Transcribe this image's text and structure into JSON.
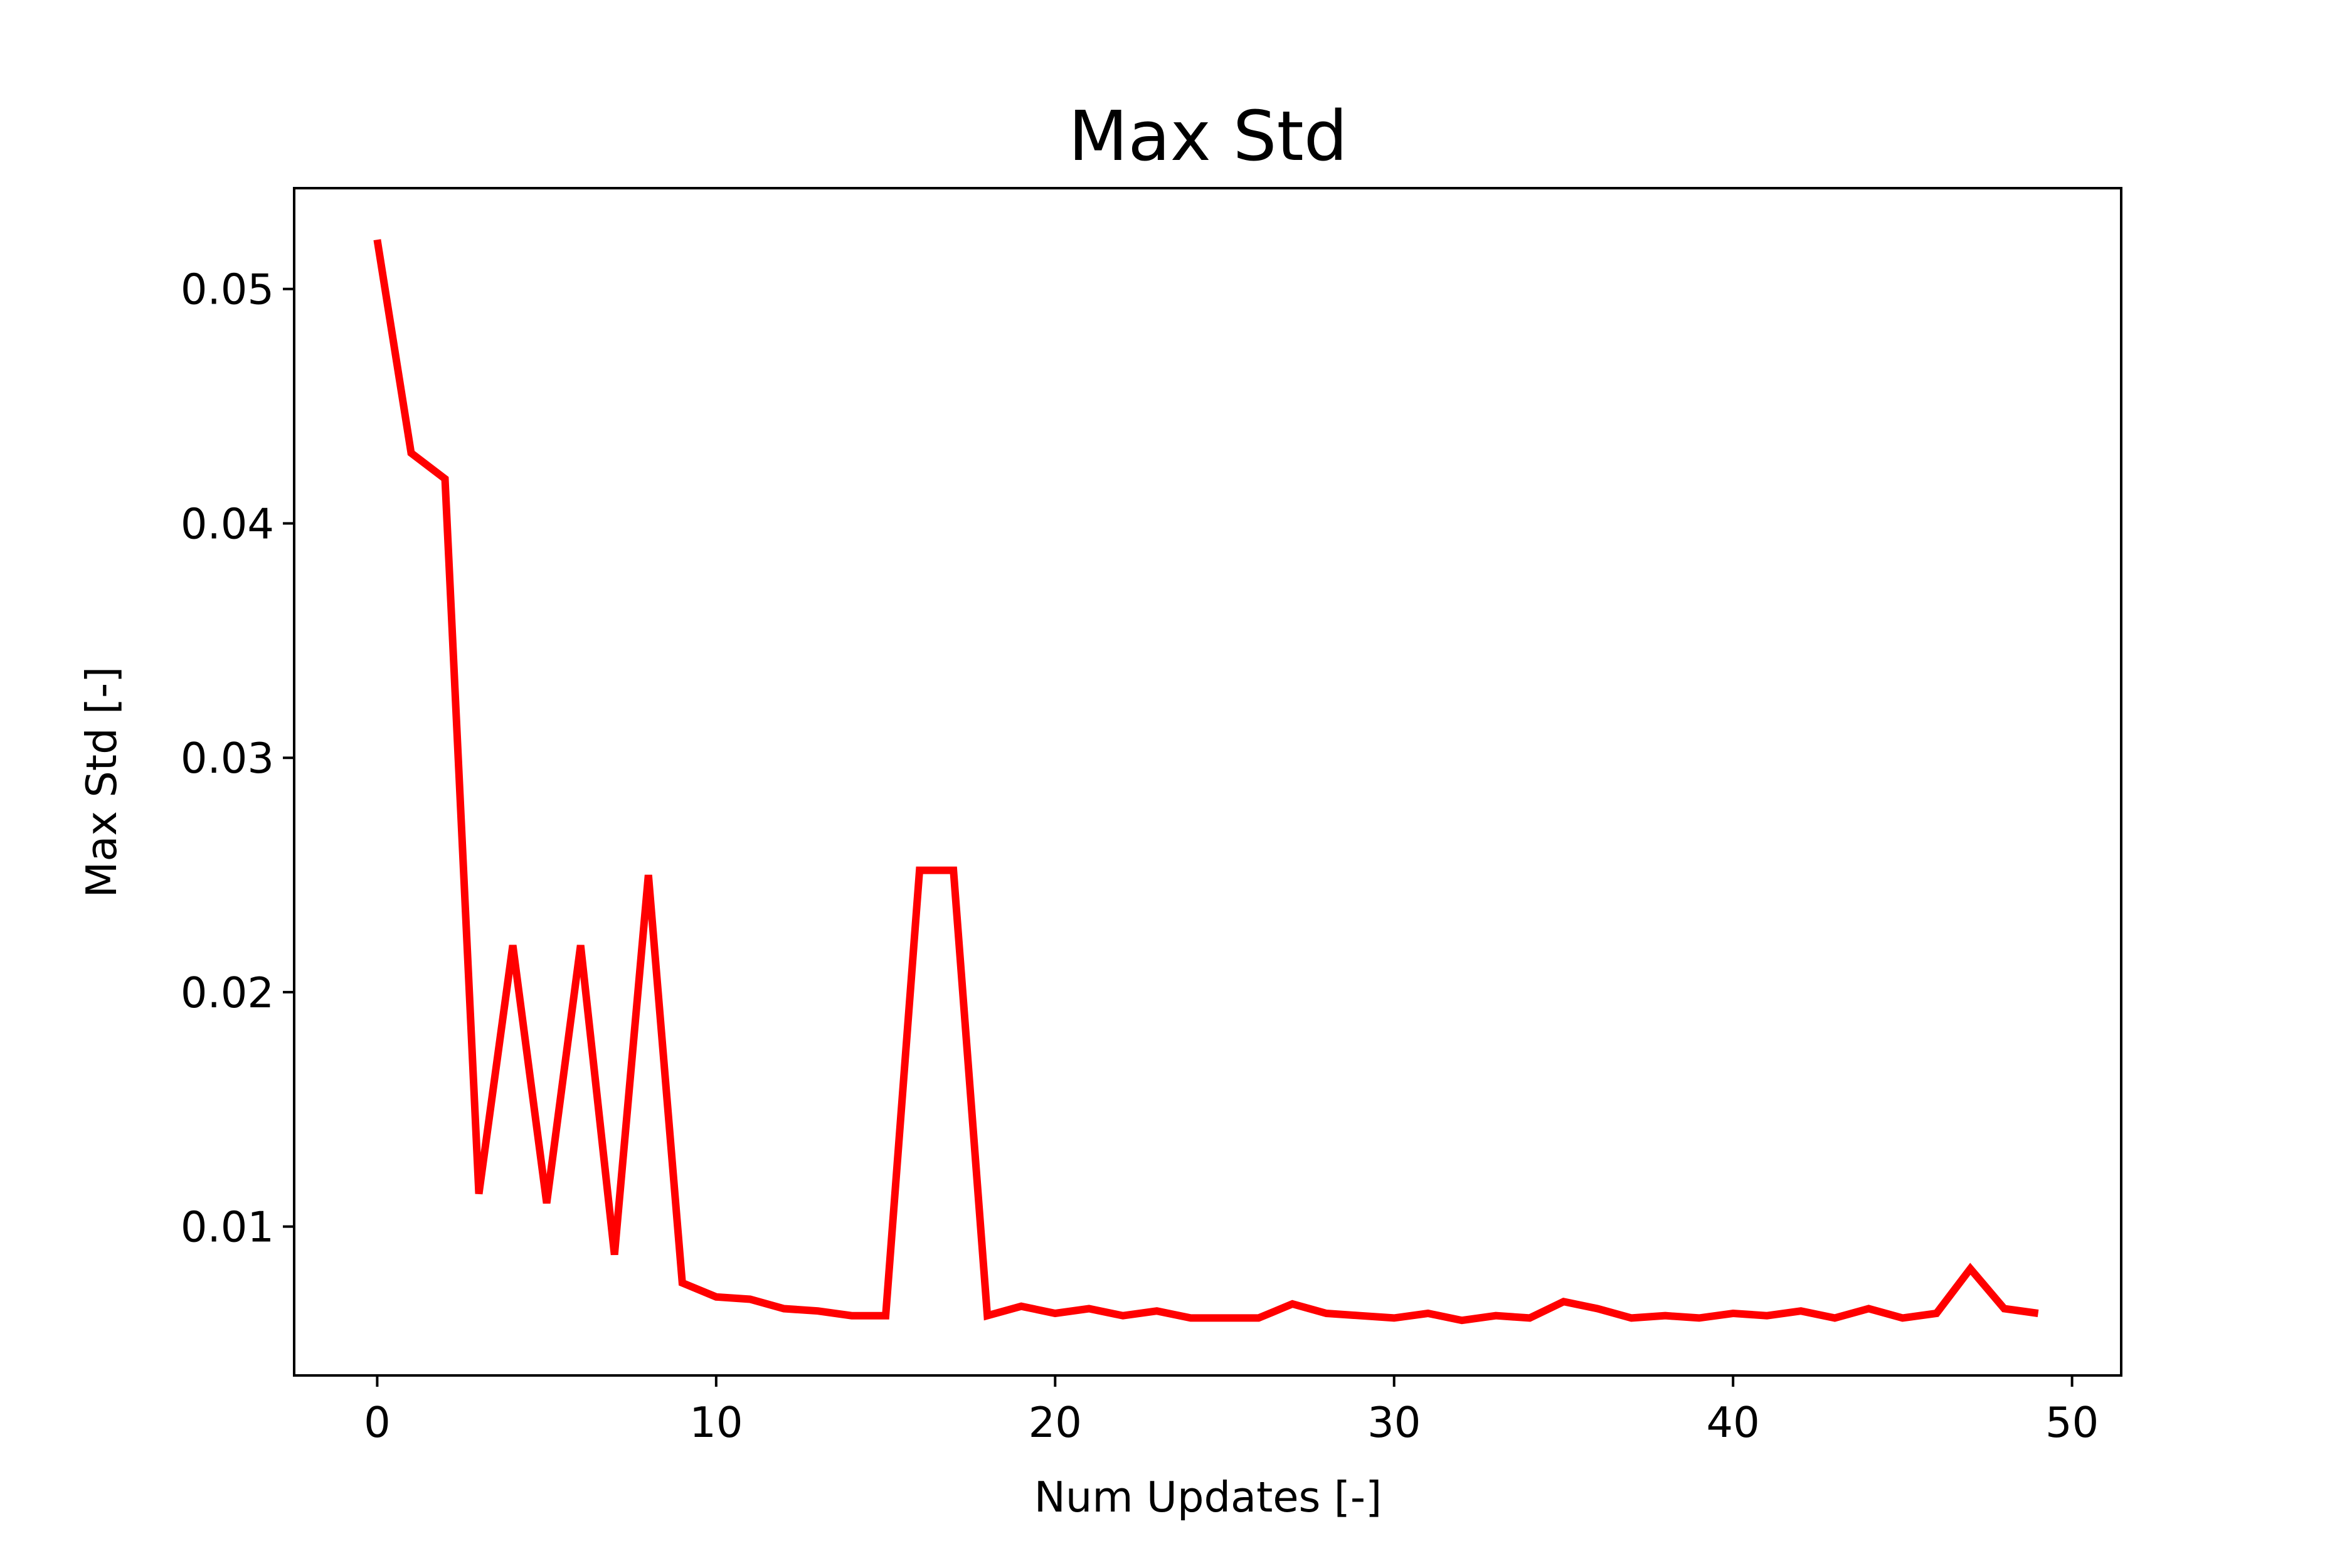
{
  "chart_data": {
    "type": "line",
    "title": "Max Std",
    "xlabel": "Num Updates [-]",
    "ylabel": "Max Std [-]",
    "xlim": [
      -2.45,
      51.45
    ],
    "ylim": [
      0.00365,
      0.0543
    ],
    "xticks": [
      0,
      10,
      20,
      30,
      40,
      50
    ],
    "xtick_labels": [
      "0",
      "10",
      "20",
      "30",
      "40",
      "50"
    ],
    "yticks": [
      0.01,
      0.02,
      0.03,
      0.04,
      0.05
    ],
    "ytick_labels": [
      "0.01",
      "0.02",
      "0.03",
      "0.04",
      "0.05"
    ],
    "grid": false,
    "series": [
      {
        "color": "#ff0000",
        "x": [
          0,
          1,
          2,
          3,
          4,
          5,
          6,
          7,
          8,
          9,
          10,
          11,
          12,
          13,
          14,
          15,
          16,
          17,
          18,
          19,
          20,
          21,
          22,
          23,
          24,
          25,
          26,
          27,
          28,
          29,
          30,
          31,
          32,
          33,
          34,
          35,
          36,
          37,
          38,
          39,
          40,
          41,
          42,
          43,
          44,
          45,
          46,
          47,
          48,
          49
        ],
        "values": [
          0.0521,
          0.043,
          0.0419,
          0.0114,
          0.022,
          0.011,
          0.022,
          0.0088,
          0.025,
          0.0076,
          0.007,
          0.0069,
          0.0065,
          0.0064,
          0.0062,
          0.0062,
          0.0252,
          0.0252,
          0.0062,
          0.0066,
          0.0063,
          0.0065,
          0.0062,
          0.0064,
          0.0061,
          0.0061,
          0.0061,
          0.0067,
          0.0063,
          0.0062,
          0.0061,
          0.0063,
          0.006,
          0.0062,
          0.0061,
          0.0068,
          0.0065,
          0.0061,
          0.0062,
          0.0061,
          0.0063,
          0.0062,
          0.0064,
          0.0061,
          0.0065,
          0.0061,
          0.0063,
          0.0082,
          0.0065,
          0.0063
        ]
      }
    ]
  }
}
